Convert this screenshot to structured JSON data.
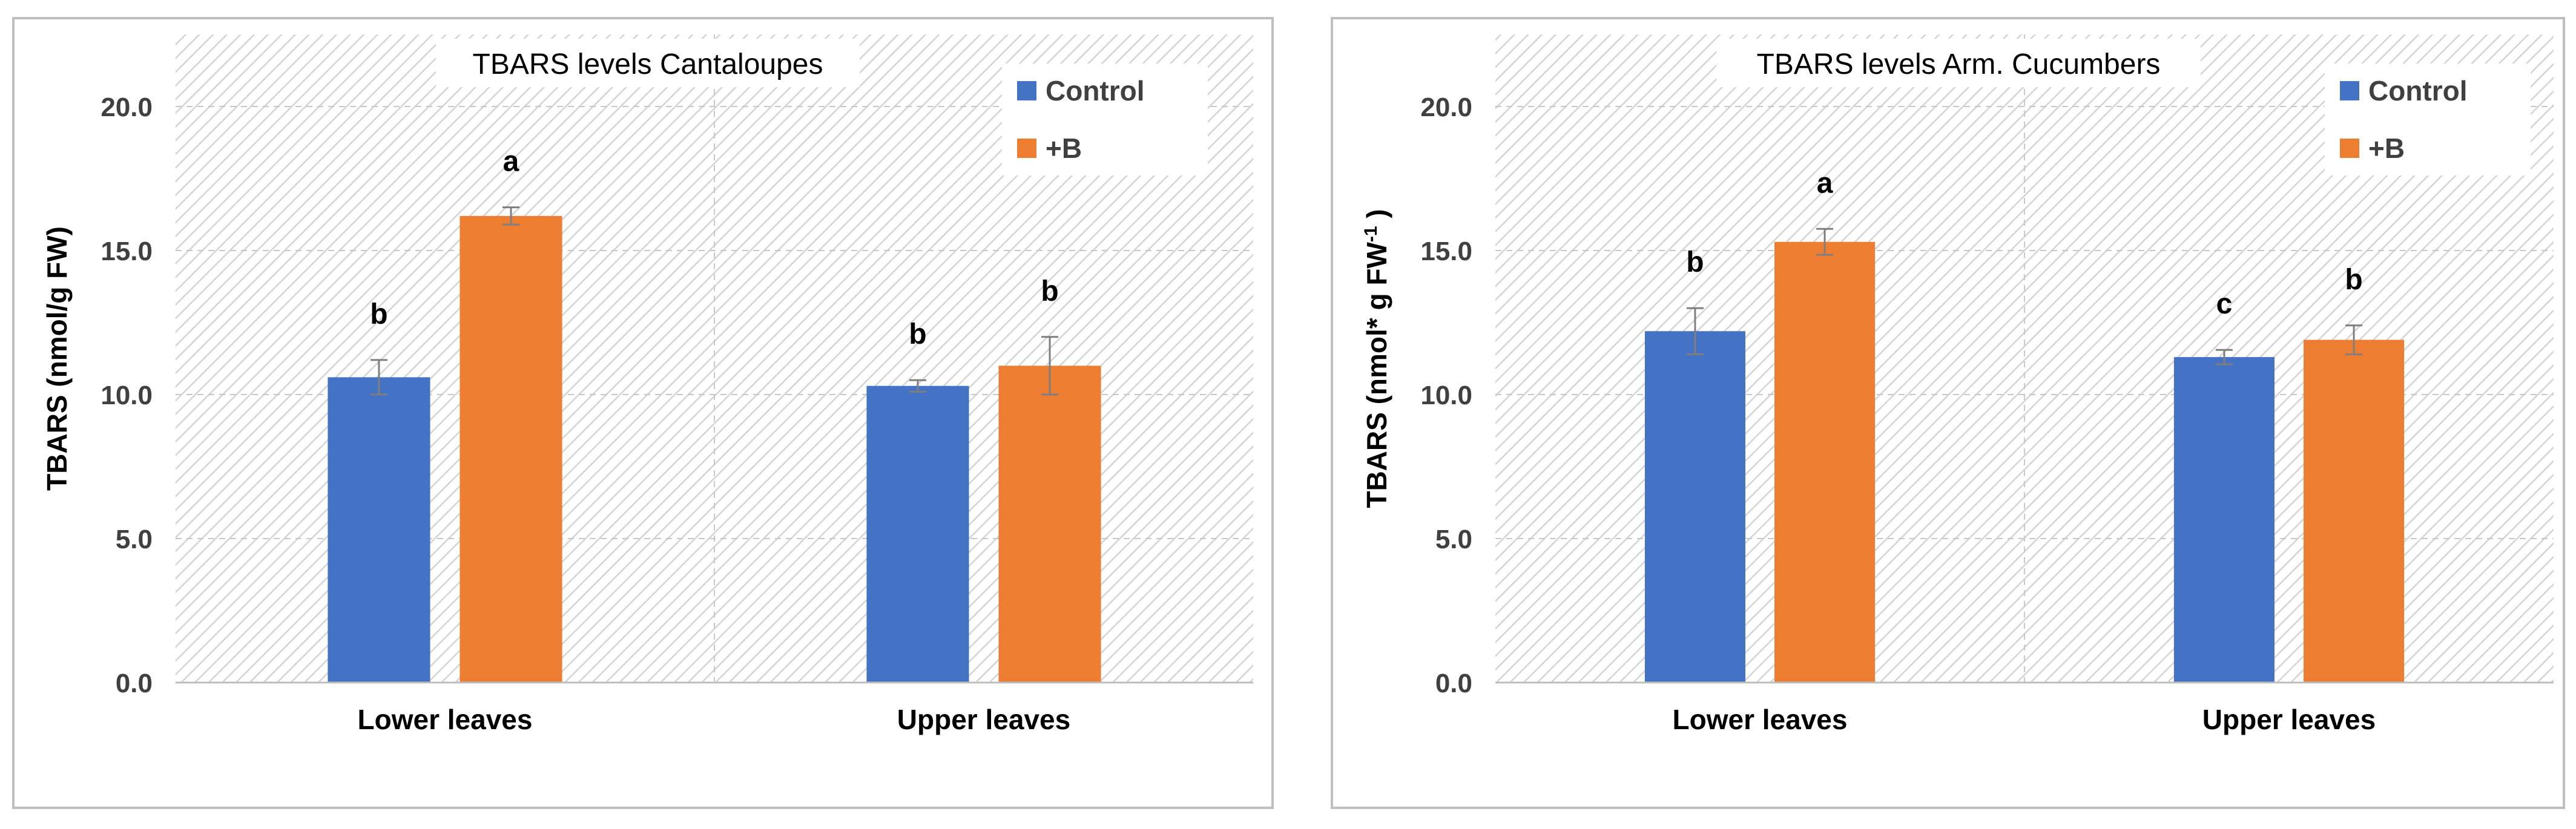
{
  "chart_data": [
    {
      "type": "bar",
      "title": "TBARS levels Cantaloupes",
      "categories": [
        "Lower leaves",
        "Upper leaves"
      ],
      "series": [
        {
          "name": "Control",
          "values": [
            10.6,
            10.3
          ],
          "errors": [
            0.6,
            0.2
          ],
          "letters": [
            "b",
            "b"
          ]
        },
        {
          "name": "+B",
          "values": [
            16.2,
            11.0
          ],
          "errors": [
            0.3,
            1.0
          ],
          "letters": [
            "a",
            "b"
          ]
        }
      ],
      "ylabel_main": "TBARS (nmol/g FW)",
      "ylabel_sup": "",
      "ylabel_tail": "",
      "ylim": [
        0,
        22.5
      ],
      "yticks": [
        "0.0",
        "5.0",
        "10.0",
        "15.0",
        "20.0"
      ],
      "legend_position": "top-right",
      "grid": true
    },
    {
      "type": "bar",
      "title": "TBARS levels Arm. Cucumbers",
      "categories": [
        "Lower leaves",
        "Upper leaves"
      ],
      "series": [
        {
          "name": "Control",
          "values": [
            12.2,
            11.3
          ],
          "errors": [
            0.8,
            0.25
          ],
          "letters": [
            "b",
            "c"
          ]
        },
        {
          "name": "+B",
          "values": [
            15.3,
            11.9
          ],
          "errors": [
            0.45,
            0.5
          ],
          "letters": [
            "a",
            "b"
          ]
        }
      ],
      "ylabel_main": "TBARS (nmol* g FW",
      "ylabel_sup": "-1",
      "ylabel_tail": " )",
      "ylim": [
        0,
        22.5
      ],
      "yticks": [
        "0.0",
        "5.0",
        "10.0",
        "15.0",
        "20.0"
      ],
      "legend_position": "top-right",
      "grid": true
    }
  ],
  "colors": {
    "control": "#4472C4",
    "plus_b": "#ED7D31",
    "hatch": "#d4d4d4",
    "frame": "#bfbfbf",
    "grid": "#c8c8c8",
    "text": "#000000",
    "tick_text": "#404040",
    "error": "#7f7f7f"
  }
}
